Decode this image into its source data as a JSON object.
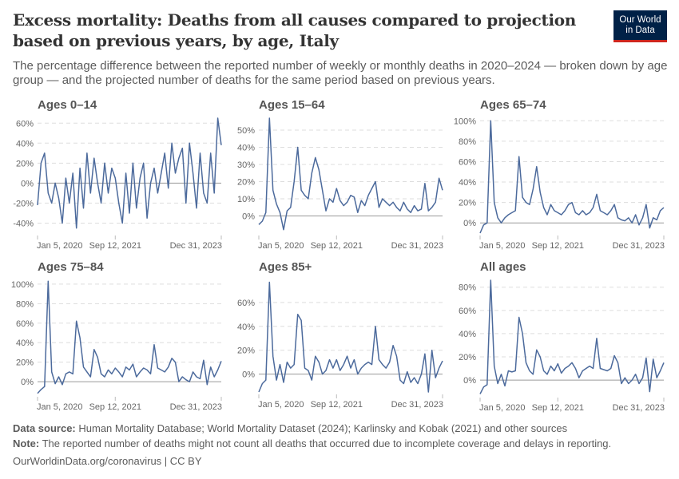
{
  "header": {
    "title": "Excess mortality: Deaths from all causes compared to projection based on previous years, by age, Italy",
    "subtitle": "The percentage difference between the reported number of weekly or monthly deaths in 2020–2024 — broken down by age group — and the projected number of deaths for the same period based on previous years.",
    "logo_line1": "Our World",
    "logo_line2": "in Data"
  },
  "footer": {
    "source_label": "Data source:",
    "source_text": "Human Mortality Database; World Mortality Dataset (2024); Karlinsky and Kobak (2021) and other sources",
    "note_label": "Note:",
    "note_text": "The reported number of deaths might not count all deaths that occurred due to incomplete coverage and delays in reporting.",
    "url": "OurWorldinData.org/coronavirus | CC BY"
  },
  "colors": {
    "line": "#4c6a9c",
    "zero_line": "#9a9a9a",
    "grid": "#dddddd",
    "logo_bg": "#002147",
    "logo_accent": "#ce261e"
  },
  "chart_data": [
    {
      "type": "line",
      "title": "Ages 0–14",
      "ylim": [
        -50,
        65
      ],
      "yticks": [
        -40,
        -20,
        0,
        20,
        40,
        60
      ],
      "ytick_labels": [
        "-40%",
        "-20%",
        "0%",
        "20%",
        "40%",
        "60%"
      ],
      "xtick_labels": [
        "Jan 5, 2020",
        "Sep 12, 2021",
        "Dec 31, 2023"
      ],
      "grid": true,
      "values": [
        -22,
        20,
        30,
        -10,
        -20,
        0,
        -15,
        -40,
        5,
        -20,
        10,
        -45,
        15,
        -25,
        30,
        -10,
        25,
        0,
        -20,
        20,
        -10,
        15,
        5,
        -20,
        -40,
        10,
        -30,
        20,
        -25,
        5,
        20,
        -35,
        0,
        15,
        -10,
        10,
        30,
        -5,
        40,
        10,
        25,
        35,
        -20,
        40,
        10,
        -25,
        30,
        -10,
        -20,
        30,
        -10,
        65,
        38
      ]
    },
    {
      "type": "line",
      "title": "Ages 15–64",
      "ylim": [
        -10,
        57
      ],
      "yticks": [
        0,
        10,
        20,
        30,
        40,
        50
      ],
      "ytick_labels": [
        "0%",
        "10%",
        "20%",
        "30%",
        "40%",
        "50%"
      ],
      "xtick_labels": [
        "Jan 5, 2020",
        "Sep 12, 2021",
        "Dec 31, 2023"
      ],
      "grid": true,
      "values": [
        -5,
        -3,
        2,
        57,
        15,
        7,
        2,
        -8,
        3,
        5,
        20,
        40,
        15,
        12,
        10,
        25,
        34,
        27,
        15,
        3,
        10,
        8,
        16,
        9,
        6,
        8,
        12,
        11,
        2,
        9,
        6,
        12,
        16,
        20,
        5,
        10,
        8,
        6,
        8,
        5,
        3,
        8,
        4,
        2,
        6,
        3,
        4,
        19,
        3,
        5,
        8,
        22,
        15
      ]
    },
    {
      "type": "line",
      "title": "Ages 65–74",
      "ylim": [
        -10,
        101
      ],
      "yticks": [
        0,
        20,
        40,
        60,
        80,
        100
      ],
      "ytick_labels": [
        "0%",
        "20%",
        "40%",
        "60%",
        "80%",
        "100%"
      ],
      "xtick_labels": [
        "Jan 5, 2020",
        "Sep 12, 2021",
        "Dec 31, 2023"
      ],
      "grid": true,
      "values": [
        -10,
        -2,
        0,
        100,
        20,
        5,
        0,
        5,
        8,
        10,
        12,
        65,
        25,
        20,
        18,
        33,
        55,
        30,
        15,
        8,
        18,
        12,
        10,
        8,
        12,
        18,
        20,
        10,
        8,
        12,
        8,
        10,
        15,
        28,
        12,
        10,
        8,
        12,
        18,
        5,
        3,
        2,
        5,
        0,
        8,
        -2,
        5,
        18,
        -5,
        5,
        3,
        12,
        15
      ]
    },
    {
      "type": "line",
      "title": "Ages 75–84",
      "ylim": [
        -13,
        104
      ],
      "yticks": [
        0,
        20,
        40,
        60,
        80,
        100
      ],
      "ytick_labels": [
        "0%",
        "20%",
        "40%",
        "60%",
        "80%",
        "100%"
      ],
      "xtick_labels": [
        "Jan 5, 2020",
        "Sep 12, 2021",
        "Dec 31, 2023"
      ],
      "grid": true,
      "values": [
        -12,
        -8,
        -5,
        103,
        10,
        -2,
        5,
        -3,
        8,
        10,
        8,
        62,
        45,
        15,
        10,
        5,
        33,
        25,
        8,
        5,
        12,
        8,
        14,
        10,
        5,
        15,
        12,
        18,
        5,
        10,
        14,
        12,
        8,
        38,
        14,
        12,
        10,
        15,
        24,
        20,
        0,
        5,
        2,
        0,
        10,
        5,
        3,
        22,
        -3,
        15,
        5,
        12,
        21
      ]
    },
    {
      "type": "line",
      "title": "Ages 85+",
      "ylim": [
        -15,
        78
      ],
      "yticks": [
        0,
        20,
        40,
        60
      ],
      "ytick_labels": [
        "0%",
        "20%",
        "40%",
        "60%"
      ],
      "xtick_labels": [
        "Jan 5, 2020",
        "Sep 12, 2021",
        "Dec 31, 2023"
      ],
      "grid": true,
      "values": [
        -15,
        -8,
        -5,
        77,
        15,
        -5,
        8,
        -7,
        10,
        5,
        8,
        50,
        45,
        5,
        3,
        -5,
        15,
        10,
        0,
        3,
        12,
        5,
        12,
        3,
        8,
        15,
        5,
        12,
        0,
        5,
        8,
        10,
        8,
        40,
        12,
        8,
        5,
        10,
        24,
        15,
        -5,
        -8,
        2,
        -7,
        -3,
        -8,
        0,
        17,
        -15,
        20,
        -3,
        5,
        11
      ]
    },
    {
      "type": "line",
      "title": "All ages",
      "ylim": [
        -13,
        86
      ],
      "yticks": [
        0,
        20,
        40,
        60,
        80
      ],
      "ytick_labels": [
        "0%",
        "20%",
        "40%",
        "60%",
        "80%"
      ],
      "xtick_labels": [
        "Jan 5, 2020",
        "Sep 12, 2021",
        "Dec 31, 2023"
      ],
      "grid": true,
      "values": [
        -12,
        -6,
        -4,
        86,
        12,
        -3,
        5,
        -5,
        8,
        7,
        8,
        54,
        40,
        15,
        8,
        5,
        26,
        20,
        8,
        5,
        12,
        8,
        14,
        6,
        10,
        12,
        15,
        10,
        2,
        8,
        10,
        12,
        10,
        36,
        10,
        9,
        8,
        10,
        21,
        15,
        -3,
        2,
        -3,
        0,
        5,
        -3,
        2,
        19,
        -10,
        18,
        2,
        8,
        15
      ]
    }
  ],
  "x": [
    "2020-01-05",
    "2020-02-02",
    "2020-03-01",
    "2020-03-29",
    "2020-04-26",
    "2020-05-24",
    "2020-06-21",
    "2020-07-19",
    "2020-08-16",
    "2020-09-13",
    "2020-10-11",
    "2020-11-08",
    "2020-12-06",
    "2021-01-03",
    "2021-01-31",
    "2021-02-28",
    "2021-03-28",
    "2021-04-25",
    "2021-05-23",
    "2021-06-20",
    "2021-07-18",
    "2021-08-15",
    "2021-09-12",
    "2021-10-10",
    "2021-11-07",
    "2021-12-05",
    "2022-01-02",
    "2022-01-30",
    "2022-02-27",
    "2022-03-27",
    "2022-04-24",
    "2022-05-22",
    "2022-06-19",
    "2022-07-17",
    "2022-08-14",
    "2022-09-11",
    "2022-10-09",
    "2022-11-06",
    "2022-12-04",
    "2023-01-01",
    "2023-01-29",
    "2023-02-26",
    "2023-03-26",
    "2023-04-23",
    "2023-05-21",
    "2023-06-18",
    "2023-07-16",
    "2023-08-13",
    "2023-09-10",
    "2023-10-08",
    "2023-11-05",
    "2023-12-03",
    "2023-12-31"
  ]
}
